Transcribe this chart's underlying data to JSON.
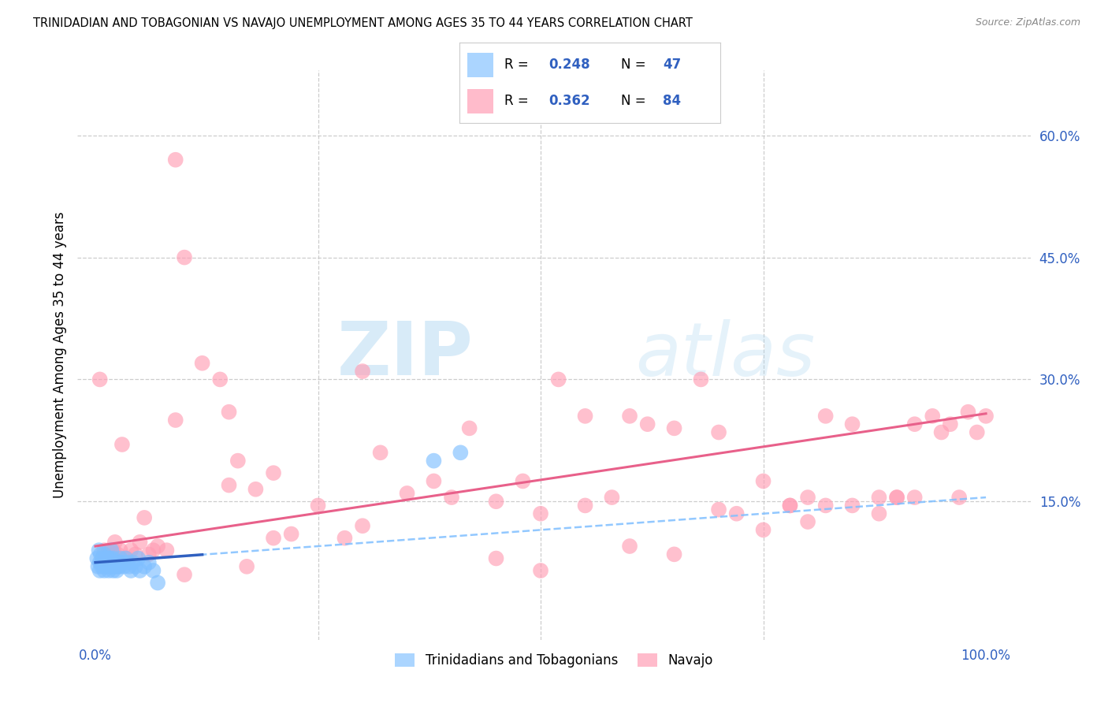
{
  "title": "TRINIDADIAN AND TOBAGONIAN VS NAVAJO UNEMPLOYMENT AMONG AGES 35 TO 44 YEARS CORRELATION CHART",
  "source": "Source: ZipAtlas.com",
  "ylabel": "Unemployment Among Ages 35 to 44 years",
  "xlim": [
    -0.02,
    1.05
  ],
  "ylim": [
    -0.02,
    0.68
  ],
  "xticks": [
    0.0,
    0.25,
    0.5,
    0.75,
    1.0
  ],
  "xticklabels": [
    "0.0%",
    "",
    "",
    "",
    "100.0%"
  ],
  "yticks": [
    0.15,
    0.3,
    0.45,
    0.6
  ],
  "yticklabels": [
    "15.0%",
    "30.0%",
    "45.0%",
    "60.0%"
  ],
  "legend_labels": [
    "Trinidadians and Tobagonians",
    "Navajo"
  ],
  "blue_color": "#7fbfff",
  "pink_color": "#ff9eb5",
  "blue_line_color": "#3060c0",
  "pink_line_color": "#e8608a",
  "blue_R": 0.248,
  "blue_N": 47,
  "pink_R": 0.362,
  "pink_N": 84,
  "watermark_zip": "ZIP",
  "watermark_atlas": "atlas",
  "background_color": "#ffffff",
  "grid_color": "#c8c8c8",
  "blue_scatter_x": [
    0.002,
    0.003,
    0.004,
    0.005,
    0.005,
    0.006,
    0.007,
    0.008,
    0.009,
    0.01,
    0.01,
    0.011,
    0.012,
    0.013,
    0.014,
    0.015,
    0.015,
    0.016,
    0.017,
    0.018,
    0.018,
    0.02,
    0.02,
    0.021,
    0.022,
    0.023,
    0.024,
    0.025,
    0.026,
    0.027,
    0.028,
    0.03,
    0.032,
    0.034,
    0.036,
    0.038,
    0.04,
    0.042,
    0.045,
    0.048,
    0.05,
    0.055,
    0.06,
    0.065,
    0.07,
    0.38,
    0.41
  ],
  "blue_scatter_y": [
    0.08,
    0.07,
    0.09,
    0.075,
    0.065,
    0.085,
    0.07,
    0.08,
    0.075,
    0.065,
    0.085,
    0.075,
    0.07,
    0.08,
    0.075,
    0.065,
    0.08,
    0.075,
    0.08,
    0.07,
    0.09,
    0.065,
    0.08,
    0.075,
    0.07,
    0.075,
    0.065,
    0.07,
    0.075,
    0.07,
    0.08,
    0.075,
    0.07,
    0.08,
    0.075,
    0.07,
    0.065,
    0.075,
    0.07,
    0.08,
    0.065,
    0.07,
    0.075,
    0.065,
    0.05,
    0.2,
    0.21
  ],
  "pink_scatter_x": [
    0.005,
    0.008,
    0.01,
    0.012,
    0.015,
    0.018,
    0.02,
    0.022,
    0.025,
    0.028,
    0.03,
    0.035,
    0.04,
    0.045,
    0.05,
    0.055,
    0.06,
    0.065,
    0.07,
    0.08,
    0.09,
    0.1,
    0.12,
    0.14,
    0.15,
    0.16,
    0.18,
    0.2,
    0.22,
    0.25,
    0.28,
    0.3,
    0.32,
    0.35,
    0.38,
    0.4,
    0.42,
    0.45,
    0.48,
    0.5,
    0.52,
    0.55,
    0.58,
    0.6,
    0.62,
    0.65,
    0.68,
    0.7,
    0.72,
    0.75,
    0.78,
    0.8,
    0.82,
    0.85,
    0.88,
    0.9,
    0.92,
    0.94,
    0.95,
    0.96,
    0.97,
    0.98,
    0.99,
    1.0,
    0.15,
    0.09,
    0.17,
    0.75,
    0.8,
    0.85,
    0.88,
    0.9,
    0.92,
    0.82,
    0.78,
    0.7,
    0.6,
    0.5,
    0.45,
    0.3,
    0.2,
    0.1,
    0.55,
    0.65
  ],
  "pink_scatter_y": [
    0.3,
    0.08,
    0.09,
    0.08,
    0.09,
    0.085,
    0.09,
    0.1,
    0.085,
    0.09,
    0.22,
    0.08,
    0.09,
    0.085,
    0.1,
    0.13,
    0.085,
    0.09,
    0.095,
    0.09,
    0.57,
    0.45,
    0.32,
    0.3,
    0.17,
    0.2,
    0.165,
    0.185,
    0.11,
    0.145,
    0.105,
    0.31,
    0.21,
    0.16,
    0.175,
    0.155,
    0.24,
    0.15,
    0.175,
    0.135,
    0.3,
    0.145,
    0.155,
    0.255,
    0.245,
    0.24,
    0.3,
    0.235,
    0.135,
    0.175,
    0.145,
    0.155,
    0.255,
    0.245,
    0.155,
    0.155,
    0.245,
    0.255,
    0.235,
    0.245,
    0.155,
    0.26,
    0.235,
    0.255,
    0.26,
    0.25,
    0.07,
    0.115,
    0.125,
    0.145,
    0.135,
    0.155,
    0.155,
    0.145,
    0.145,
    0.14,
    0.095,
    0.065,
    0.08,
    0.12,
    0.105,
    0.06,
    0.255,
    0.085
  ]
}
